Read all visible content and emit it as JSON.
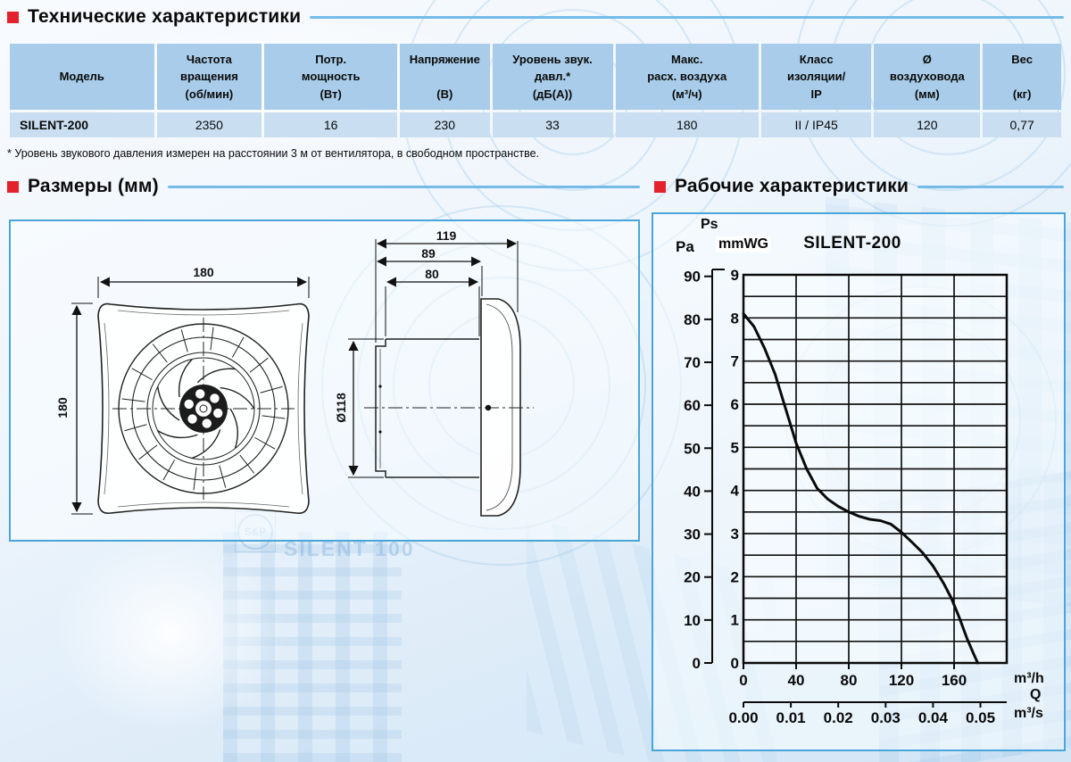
{
  "sections": {
    "tech": {
      "title": "Технические характеристики"
    },
    "dims": {
      "title": "Размеры (мм)"
    },
    "perf": {
      "title": "Рабочие характеристики"
    }
  },
  "table": {
    "headers": [
      "Модель",
      "Частота\nвращения\n(об/мин)",
      "Потр.\nмощность\n(Вт)",
      "Напряжение\n\n(В)",
      "Уровень звук.\nдавл.*\n(дБ(А))",
      "Макс.\nрасх. воздуха\n(м³/ч)",
      "Класс\nизоляции/\nIP",
      "Ø\nвоздуховода\n(мм)",
      "Вес\n\n(кг)"
    ],
    "row": [
      "SILENT-200",
      "2350",
      "16",
      "230",
      "33",
      "180",
      "II / IP45",
      "120",
      "0,77"
    ]
  },
  "footnote": "* Уровень звукового давления измерен на расстоянии 3 м от вентилятора, в свободном пространстве.",
  "drawing": {
    "front_width": "180",
    "front_height": "180",
    "side_depth_total": "119",
    "side_depth_mid": "89",
    "side_duct_length": "80",
    "duct_diameter": "Ø118",
    "watermark_logo": "S&P",
    "watermark_text": "SILENT 100"
  },
  "colors": {
    "accent_red": "#e3222b",
    "rule_blue": "#74bbe7",
    "box_border": "#4aa6da",
    "header_bg": "#a8cce9",
    "row_bg": "#c9def1",
    "curve": "#0a0a0a"
  },
  "chart_data": {
    "type": "line",
    "title": "SILENT-200",
    "pressure_label": "Ps",
    "pa_label": "Pa",
    "mmwg_label": "mmWG",
    "pa_ticks": [
      90,
      80,
      70,
      60,
      50,
      40,
      30,
      20,
      10,
      0
    ],
    "mmwg_ticks": [
      9,
      8,
      7,
      6,
      5,
      4,
      3,
      2,
      1,
      0
    ],
    "grid_step_mmwg": 0.5,
    "x_ticks_m3h": [
      0,
      40,
      80,
      120,
      160
    ],
    "x_max_m3h": 200,
    "x_unit": "m³/h",
    "x_symbol": "Q",
    "x2_ticks_m3s": [
      "0.00",
      "0.01",
      "0.02",
      "0.03",
      "0.04",
      "0.05"
    ],
    "x2_unit": "m³/s",
    "ylim_pa": [
      0,
      90
    ],
    "legend": "none",
    "grid": "on",
    "series": [
      {
        "name": "SILENT-200",
        "points_q_pa": [
          [
            0,
            81
          ],
          [
            8,
            78
          ],
          [
            16,
            73
          ],
          [
            24,
            67
          ],
          [
            32,
            59
          ],
          [
            40,
            51
          ],
          [
            48,
            45
          ],
          [
            56,
            40.5
          ],
          [
            64,
            38
          ],
          [
            72,
            36.3
          ],
          [
            80,
            35
          ],
          [
            88,
            34
          ],
          [
            96,
            33.3
          ],
          [
            104,
            33
          ],
          [
            112,
            32.2
          ],
          [
            120,
            30.3
          ],
          [
            128,
            28
          ],
          [
            136,
            25.6
          ],
          [
            144,
            22.5
          ],
          [
            152,
            18.5
          ],
          [
            158,
            15
          ],
          [
            164,
            10.5
          ],
          [
            170,
            5.5
          ],
          [
            175,
            2
          ],
          [
            178,
            0
          ]
        ]
      }
    ]
  }
}
